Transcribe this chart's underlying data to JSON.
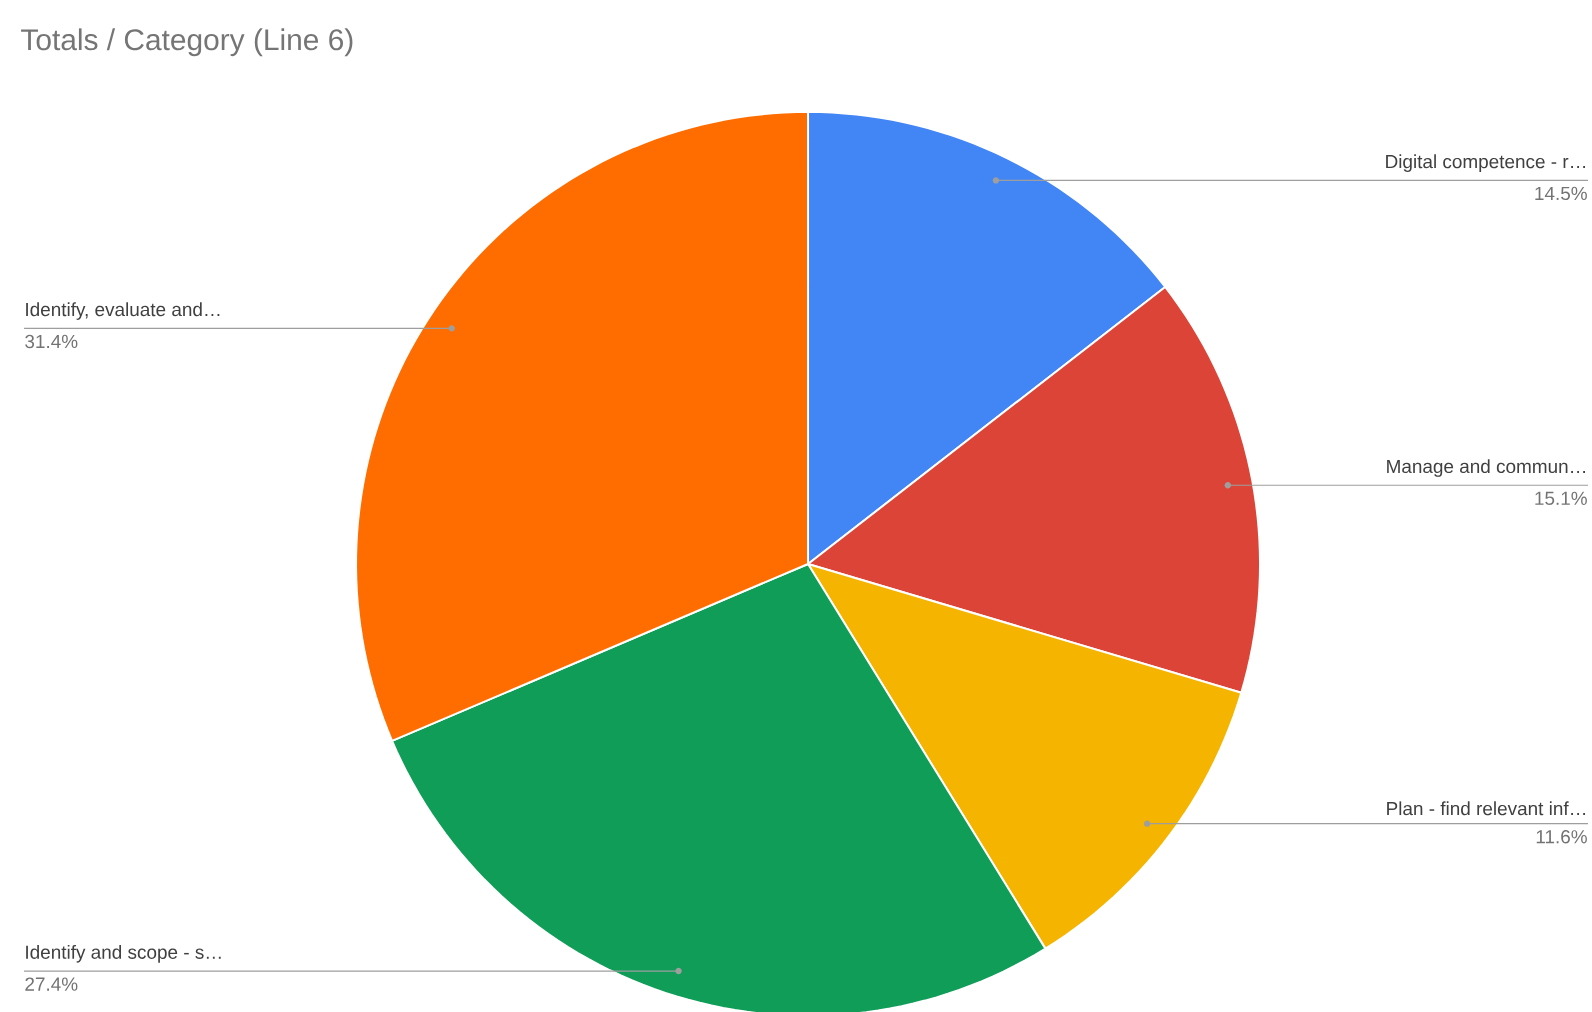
{
  "chart_data": {
    "type": "pie",
    "title": "Totals / Category (Line 6)",
    "categories": [
      "Digital competence - r…",
      "Manage and commun…",
      "Plan - find relevant inf…",
      "Identify and scope - s…",
      "Identify, evaluate and…"
    ],
    "values": [
      14.5,
      15.1,
      11.6,
      27.4,
      31.4
    ],
    "value_labels": [
      "14.5%",
      "15.1%",
      "11.6%",
      "27.4%",
      "31.4%"
    ],
    "colors": [
      "#4285f4",
      "#db4437",
      "#f4b400",
      "#0f9d58",
      "#ff6d00"
    ]
  }
}
